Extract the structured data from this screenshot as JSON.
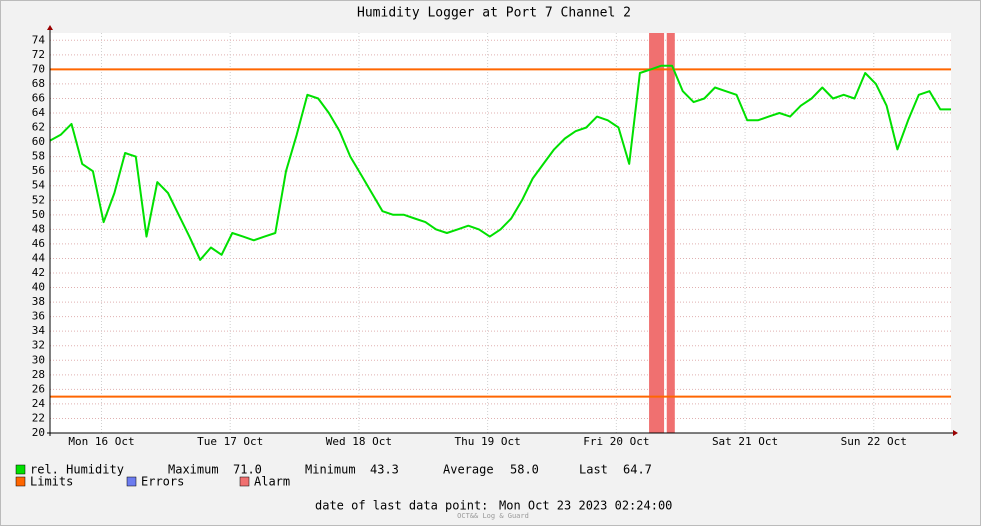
{
  "chart_data": {
    "type": "line",
    "title": "Humidity Logger at Port 7 Channel 2",
    "xlim": [
      0,
      168
    ],
    "xticks": [
      {
        "value": 9.6,
        "label": "Mon 16 Oct"
      },
      {
        "value": 33.6,
        "label": "Tue 17 Oct"
      },
      {
        "value": 57.6,
        "label": "Wed 18 Oct"
      },
      {
        "value": 81.6,
        "label": "Thu 19 Oct"
      },
      {
        "value": 105.6,
        "label": "Fri 20 Oct"
      },
      {
        "value": 129.6,
        "label": "Sat 21 Oct"
      },
      {
        "value": 153.6,
        "label": "Sun 22 Oct"
      }
    ],
    "ylim": [
      20,
      75
    ],
    "yticks": [
      20,
      22,
      24,
      26,
      28,
      30,
      32,
      34,
      36,
      38,
      40,
      42,
      44,
      46,
      48,
      50,
      52,
      54,
      56,
      58,
      60,
      62,
      64,
      66,
      68,
      70,
      72,
      74
    ],
    "grid": true,
    "series": [
      {
        "name": "rel. Humidity",
        "color": "#00e000",
        "x": [
          0,
          2,
          4,
          6,
          8,
          10,
          12,
          14,
          16,
          18,
          20,
          22,
          24,
          26,
          28,
          30,
          32,
          34,
          36,
          38,
          40,
          42,
          44,
          46,
          48,
          50,
          52,
          54,
          56,
          58,
          60,
          62,
          64,
          66,
          68,
          70,
          72,
          74,
          76,
          78,
          80,
          82,
          84,
          86,
          88,
          90,
          92,
          94,
          96,
          98,
          100,
          102,
          104,
          106,
          108,
          110,
          112,
          114,
          116,
          118,
          120,
          122,
          124,
          126,
          128,
          130,
          132,
          134,
          136,
          138,
          140,
          142,
          144,
          146,
          148,
          150,
          152,
          154,
          156,
          158,
          160,
          162,
          164,
          166,
          168
        ],
        "values": [
          60.2,
          61,
          62.5,
          57,
          56,
          49,
          53,
          58.5,
          58,
          47,
          54.5,
          53,
          50,
          47,
          43.8,
          45.5,
          44.5,
          47.5,
          47,
          46.5,
          47,
          47.5,
          56,
          61,
          66.5,
          66,
          64,
          61.5,
          58,
          55.5,
          53,
          50.5,
          50,
          50,
          49.5,
          49,
          48,
          47.5,
          48,
          48.5,
          48,
          47,
          48,
          49.5,
          52,
          55,
          57,
          59,
          60.5,
          61.5,
          62,
          63.5,
          63,
          62,
          57,
          69.5,
          70,
          70.5,
          70.5,
          67,
          65.5,
          66,
          67.5,
          67,
          66.5,
          63,
          63,
          63.5,
          64,
          63.5,
          65,
          66,
          67.5,
          66,
          66.5,
          66,
          69.5,
          68,
          65,
          59,
          63,
          66.5,
          67,
          64.5,
          64.5
        ]
      }
    ],
    "limits": {
      "name": "Limits",
      "color": "#ff6600",
      "values": [
        70,
        25
      ]
    },
    "errors": {
      "name": "Errors",
      "color": "#6c7cf0"
    },
    "alarm": {
      "name": "Alarm",
      "color": "#f07070",
      "ranges": [
        [
          111.7,
          114.5
        ],
        [
          115,
          116.5
        ]
      ]
    },
    "stats": [
      {
        "label": "Maximum",
        "value": "71.0"
      },
      {
        "label": "Minimum",
        "value": "43.3"
      },
      {
        "label": "Average",
        "value": "58.0"
      },
      {
        "label": "Last",
        "value": "64.7"
      }
    ],
    "footer_label": "date of last data point:",
    "footer_value": "Mon Oct 23 2023 02:24:00",
    "watermark": "OCT&& Log & Guard"
  }
}
